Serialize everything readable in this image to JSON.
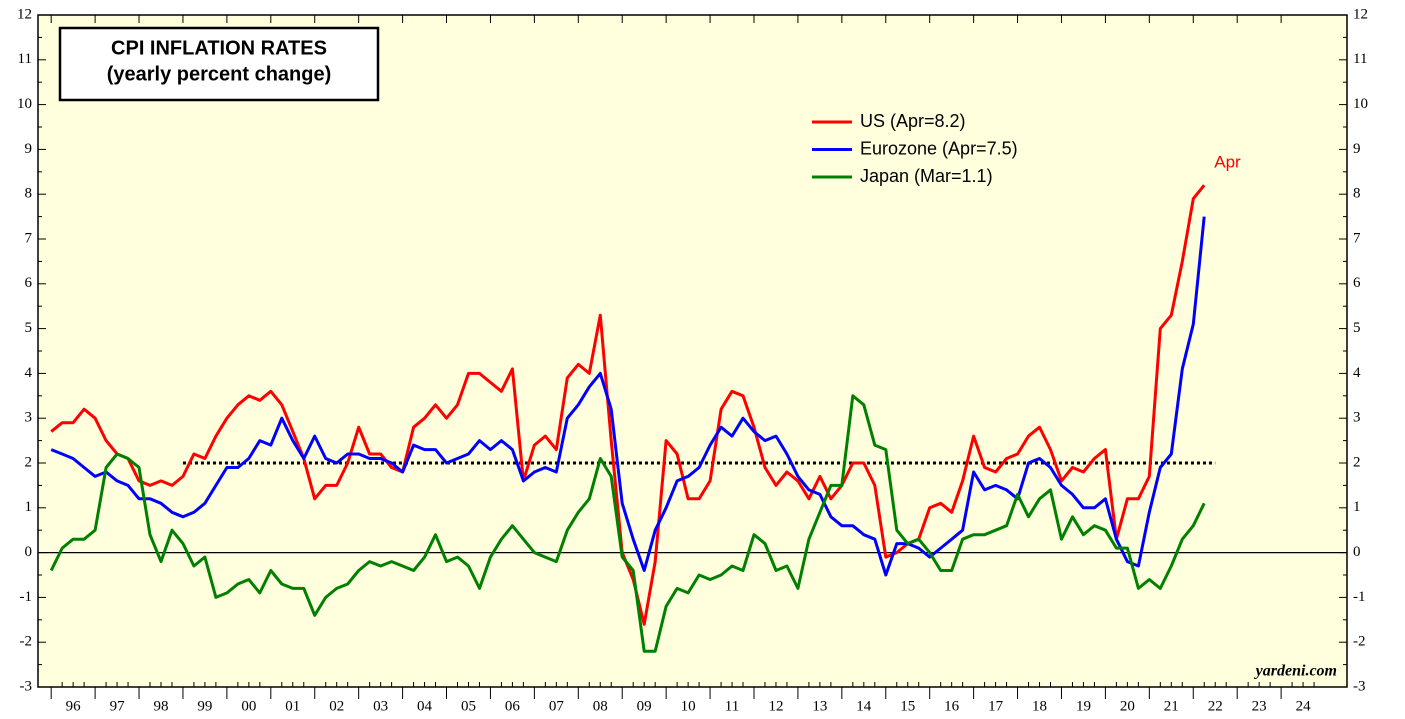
{
  "chart_data": {
    "type": "line",
    "title": "CPI INFLATION RATES",
    "subtitle": "(yearly percent change)",
    "source": "yardeni.com",
    "annotation": {
      "text": "Apr",
      "color": "#ff0000"
    },
    "reference_line": {
      "value": 2,
      "x": [
        1999,
        2022.5
      ]
    },
    "xlim": [
      1995.7,
      2025.5
    ],
    "xticks": [
      {
        "value": 1996.5,
        "label": "96"
      },
      {
        "value": 1997.5,
        "label": "97"
      },
      {
        "value": 1998.5,
        "label": "98"
      },
      {
        "value": 1999.5,
        "label": "99"
      },
      {
        "value": 2000.5,
        "label": "00"
      },
      {
        "value": 2001.5,
        "label": "01"
      },
      {
        "value": 2002.5,
        "label": "02"
      },
      {
        "value": 2003.5,
        "label": "03"
      },
      {
        "value": 2004.5,
        "label": "04"
      },
      {
        "value": 2005.5,
        "label": "05"
      },
      {
        "value": 2006.5,
        "label": "06"
      },
      {
        "value": 2007.5,
        "label": "07"
      },
      {
        "value": 2008.5,
        "label": "08"
      },
      {
        "value": 2009.5,
        "label": "09"
      },
      {
        "value": 2010.5,
        "label": "10"
      },
      {
        "value": 2011.5,
        "label": "11"
      },
      {
        "value": 2012.5,
        "label": "12"
      },
      {
        "value": 2013.5,
        "label": "13"
      },
      {
        "value": 2014.5,
        "label": "14"
      },
      {
        "value": 2015.5,
        "label": "15"
      },
      {
        "value": 2016.5,
        "label": "16"
      },
      {
        "value": 2017.5,
        "label": "17"
      },
      {
        "value": 2018.5,
        "label": "18"
      },
      {
        "value": 2019.5,
        "label": "19"
      },
      {
        "value": 2020.5,
        "label": "20"
      },
      {
        "value": 2021.5,
        "label": "21"
      },
      {
        "value": 2022.5,
        "label": "22"
      },
      {
        "value": 2023.5,
        "label": "23"
      },
      {
        "value": 2024.5,
        "label": "24"
      }
    ],
    "ylim": [
      -3,
      12
    ],
    "yticks": [
      -3,
      -2,
      -1,
      0,
      1,
      2,
      3,
      4,
      5,
      6,
      7,
      8,
      9,
      10,
      11,
      12
    ],
    "x": [
      1996,
      1996.25,
      1996.5,
      1996.75,
      1997,
      1997.25,
      1997.5,
      1997.75,
      1998,
      1998.25,
      1998.5,
      1998.75,
      1999,
      1999.25,
      1999.5,
      1999.75,
      2000,
      2000.25,
      2000.5,
      2000.75,
      2001,
      2001.25,
      2001.5,
      2001.75,
      2002,
      2002.25,
      2002.5,
      2002.75,
      2003,
      2003.25,
      2003.5,
      2003.75,
      2004,
      2004.25,
      2004.5,
      2004.75,
      2005,
      2005.25,
      2005.5,
      2005.75,
      2006,
      2006.25,
      2006.5,
      2006.75,
      2007,
      2007.25,
      2007.5,
      2007.75,
      2008,
      2008.25,
      2008.5,
      2008.75,
      2009,
      2009.25,
      2009.5,
      2009.75,
      2010,
      2010.25,
      2010.5,
      2010.75,
      2011,
      2011.25,
      2011.5,
      2011.75,
      2012,
      2012.25,
      2012.5,
      2012.75,
      2013,
      2013.25,
      2013.5,
      2013.75,
      2014,
      2014.25,
      2014.5,
      2014.75,
      2015,
      2015.25,
      2015.5,
      2015.75,
      2016,
      2016.25,
      2016.5,
      2016.75,
      2017,
      2017.25,
      2017.5,
      2017.75,
      2018,
      2018.25,
      2018.5,
      2018.75,
      2019,
      2019.25,
      2019.5,
      2019.75,
      2020,
      2020.25,
      2020.5,
      2020.75,
      2021,
      2021.25,
      2021.5,
      2021.75,
      2022,
      2022.25
    ],
    "series": [
      {
        "name": "US (Apr=8.2)",
        "color": "#ff0000",
        "values": [
          2.7,
          2.9,
          2.9,
          3.2,
          3.0,
          2.5,
          2.2,
          2.1,
          1.6,
          1.5,
          1.6,
          1.5,
          1.7,
          2.2,
          2.1,
          2.6,
          3.0,
          3.3,
          3.5,
          3.4,
          3.6,
          3.3,
          2.7,
          2.1,
          1.2,
          1.5,
          1.5,
          2.0,
          2.8,
          2.2,
          2.2,
          1.9,
          1.8,
          2.8,
          3.0,
          3.3,
          3.0,
          3.3,
          4.0,
          4.0,
          3.8,
          3.6,
          4.1,
          1.6,
          2.4,
          2.6,
          2.3,
          3.9,
          4.2,
          4.0,
          5.3,
          2.5,
          0.0,
          -0.6,
          -1.6,
          -0.2,
          2.5,
          2.2,
          1.2,
          1.2,
          1.6,
          3.2,
          3.6,
          3.5,
          2.8,
          1.9,
          1.5,
          1.8,
          1.6,
          1.2,
          1.7,
          1.2,
          1.5,
          2.0,
          2.0,
          1.5,
          -0.1,
          0.0,
          0.2,
          0.3,
          1.0,
          1.1,
          0.9,
          1.6,
          2.6,
          1.9,
          1.8,
          2.1,
          2.2,
          2.6,
          2.8,
          2.3,
          1.6,
          1.9,
          1.8,
          2.1,
          2.3,
          0.3,
          1.2,
          1.2,
          1.7,
          5.0,
          5.3,
          6.5,
          7.9,
          8.2
        ]
      },
      {
        "name": "Eurozone (Apr=7.5)",
        "color": "#0000ff",
        "values": [
          2.3,
          2.2,
          2.1,
          1.9,
          1.7,
          1.8,
          1.6,
          1.5,
          1.2,
          1.2,
          1.1,
          0.9,
          0.8,
          0.9,
          1.1,
          1.5,
          1.9,
          1.9,
          2.1,
          2.5,
          2.4,
          3.0,
          2.5,
          2.1,
          2.6,
          2.1,
          2.0,
          2.2,
          2.2,
          2.1,
          2.1,
          2.0,
          1.8,
          2.4,
          2.3,
          2.3,
          2.0,
          2.1,
          2.2,
          2.5,
          2.3,
          2.5,
          2.3,
          1.6,
          1.8,
          1.9,
          1.8,
          3.0,
          3.3,
          3.7,
          4.0,
          3.2,
          1.1,
          0.3,
          -0.4,
          0.5,
          1.0,
          1.6,
          1.7,
          1.9,
          2.4,
          2.8,
          2.6,
          3.0,
          2.7,
          2.5,
          2.6,
          2.2,
          1.7,
          1.4,
          1.3,
          0.8,
          0.6,
          0.6,
          0.4,
          0.3,
          -0.5,
          0.2,
          0.2,
          0.1,
          -0.1,
          0.1,
          0.3,
          0.5,
          1.8,
          1.4,
          1.5,
          1.4,
          1.2,
          2.0,
          2.1,
          1.9,
          1.5,
          1.3,
          1.0,
          1.0,
          1.2,
          0.3,
          -0.2,
          -0.3,
          0.9,
          1.9,
          2.2,
          4.1,
          5.1,
          7.5
        ]
      },
      {
        "name": "Japan (Mar=1.1)",
        "color": "#008000",
        "values": [
          -0.4,
          0.1,
          0.3,
          0.3,
          0.5,
          1.9,
          2.2,
          2.1,
          1.9,
          0.4,
          -0.2,
          0.5,
          0.2,
          -0.3,
          -0.1,
          -1.0,
          -0.9,
          -0.7,
          -0.6,
          -0.9,
          -0.4,
          -0.7,
          -0.8,
          -0.8,
          -1.4,
          -1.0,
          -0.8,
          -0.7,
          -0.4,
          -0.2,
          -0.3,
          -0.2,
          -0.3,
          -0.4,
          -0.1,
          0.4,
          -0.2,
          -0.1,
          -0.3,
          -0.8,
          -0.1,
          0.3,
          0.6,
          0.3,
          0.0,
          -0.1,
          -0.2,
          0.5,
          0.9,
          1.2,
          2.1,
          1.7,
          -0.1,
          -0.4,
          -2.2,
          -2.2,
          -1.2,
          -0.8,
          -0.9,
          -0.5,
          -0.6,
          -0.5,
          -0.3,
          -0.4,
          0.4,
          0.2,
          -0.4,
          -0.3,
          -0.8,
          0.3,
          0.9,
          1.5,
          1.5,
          3.5,
          3.3,
          2.4,
          2.3,
          0.5,
          0.2,
          0.3,
          0.0,
          -0.4,
          -0.4,
          0.3,
          0.4,
          0.4,
          0.5,
          0.6,
          1.3,
          0.8,
          1.2,
          1.4,
          0.3,
          0.8,
          0.4,
          0.6,
          0.5,
          0.1,
          0.1,
          -0.8,
          -0.6,
          -0.8,
          -0.3,
          0.3,
          0.6,
          1.1
        ]
      }
    ]
  }
}
